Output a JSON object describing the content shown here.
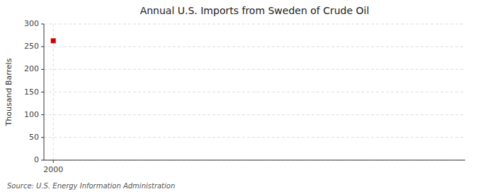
{
  "chart_data": {
    "type": "scatter",
    "title": "Annual U.S. Imports from Sweden of Crude Oil",
    "y_label": "Thousand Barrels",
    "annotations": [
      "Source: U.S. Energy Information Administration"
    ],
    "x": [
      2000
    ],
    "values": [
      263
    ],
    "color": "#cc0000",
    "marker": "square",
    "xlim": [
      1999.5,
      2022
    ],
    "xticks": [
      2000
    ],
    "ylim": [
      0,
      300
    ],
    "yticks": [
      0,
      50,
      100,
      150,
      200,
      250,
      300
    ],
    "grid": true
  }
}
